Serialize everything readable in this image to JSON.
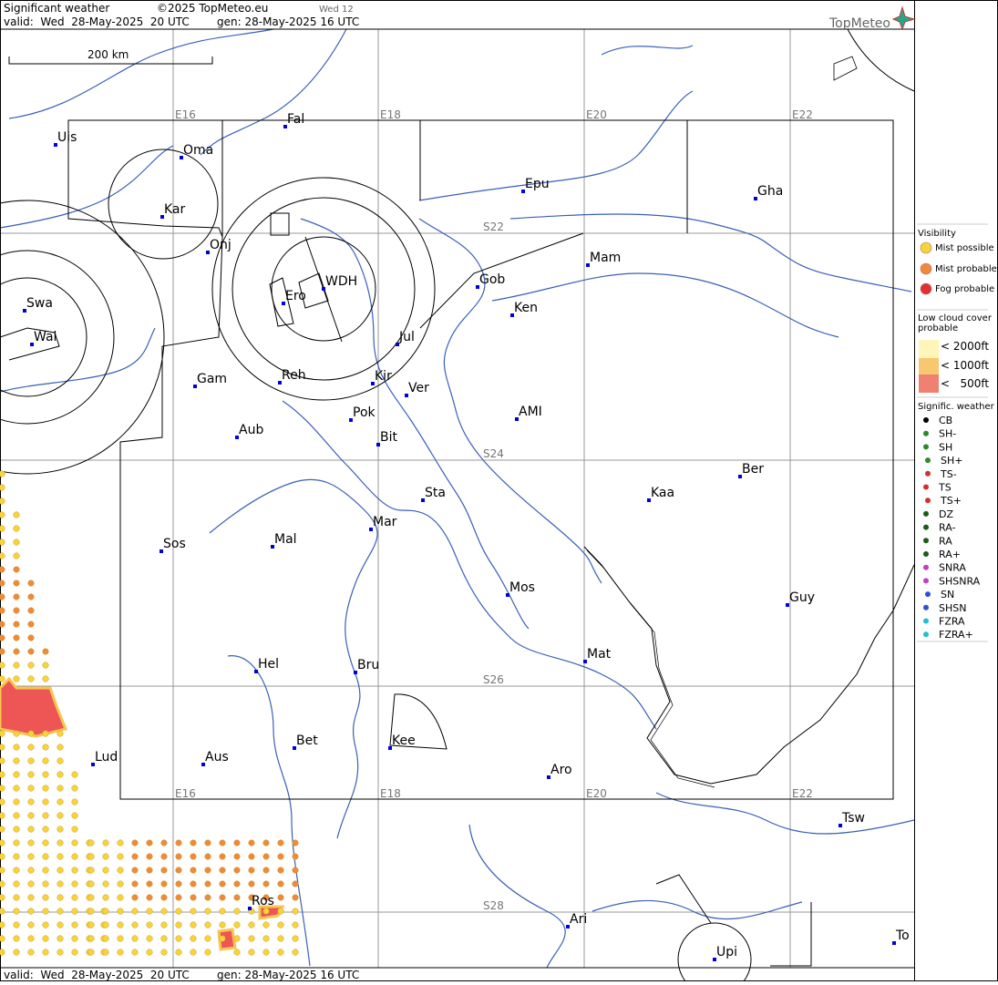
{
  "header": {
    "title": "Significant weather",
    "copyright": "©2025 TopMeteo.eu",
    "day": "Wed 12",
    "valid": "valid:  Wed  28-May-2025  20 UTC",
    "gen": "gen: 28-May-2025 16 UTC",
    "logo": "TopMeteo"
  },
  "footer": {
    "valid": "valid:  Wed  28-May-2025  20 UTC",
    "gen": "gen: 28-May-2025 16 UTC"
  },
  "scale": "200 km",
  "grid": {
    "lon_top": [
      "E16",
      "E18",
      "E20",
      "E22"
    ],
    "lon_bottom": [
      "E16",
      "E18",
      "E20",
      "E22"
    ],
    "lat": [
      "S22",
      "S24",
      "S26",
      "S28"
    ]
  },
  "places": [
    "Uis",
    "Fal",
    "Oma",
    "Kar",
    "Onj",
    "Epu",
    "Gha",
    "Mam",
    "Gob",
    "Ken",
    "Swa",
    "WDH",
    "Ero",
    "Wal",
    "Jul",
    "Gam",
    "Reh",
    "Kir",
    "Ver",
    "Pok",
    "AMI",
    "Aub",
    "Bit",
    "Ber",
    "Sta",
    "Kaa",
    "Sos",
    "Mal",
    "Mar",
    "Mos",
    "Guy",
    "Mat",
    "Hel",
    "Bru",
    "Bet",
    "Kee",
    "Lud",
    "Aus",
    "Aro",
    "Tsw",
    "Ros",
    "Ari",
    "To",
    "Upi"
  ],
  "legend": {
    "visibility": {
      "title": "Visibility",
      "items": [
        "Mist possible",
        "Mist probable",
        "Fog probable"
      ]
    },
    "low_cloud": {
      "title": "Low cloud cover probable",
      "items": [
        "< 2000ft",
        "< 1000ft",
        "<   500ft"
      ]
    },
    "sigwx": {
      "title": "Signific. weather",
      "items": [
        "CB",
        "SH-",
        "SH",
        "SH+",
        "TS-",
        "TS",
        "TS+",
        "DZ",
        "RA-",
        "RA",
        "RA+",
        "SNRA",
        "SHSNRA",
        "SN",
        "SHSN",
        "FZRA",
        "FZRA+"
      ]
    }
  }
}
